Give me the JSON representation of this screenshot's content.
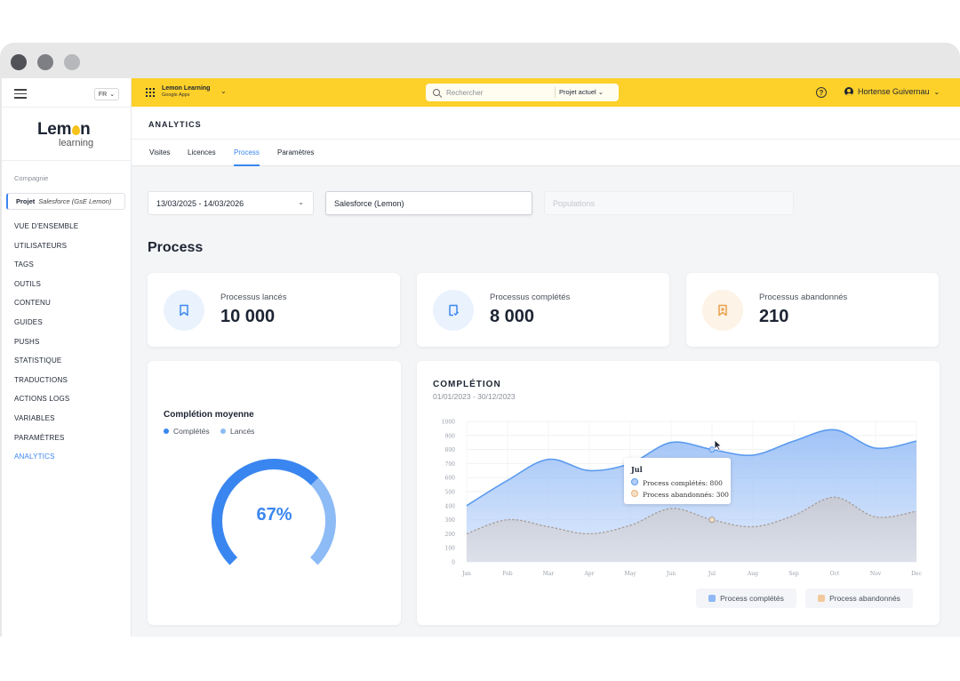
{
  "window": {
    "colors": {
      "dot1": "#505257",
      "dot2": "#7d7f84",
      "dot3": "#b7b8bb"
    }
  },
  "sidebar": {
    "lang": "FR",
    "logo": {
      "word_pre": "Lem",
      "word_post": "n",
      "sub": "learning"
    },
    "company_label": "Compagnie",
    "project": {
      "label": "Projet",
      "value": "Salesforce (GsE Lemon)"
    },
    "items": [
      {
        "label": "VUE D'ENSEMBLE"
      },
      {
        "label": "UTILISATEURS"
      },
      {
        "label": "TAGS"
      },
      {
        "label": "OUTILS"
      },
      {
        "label": "CONTENU"
      },
      {
        "label": "GUIDES"
      },
      {
        "label": "PUSHS"
      },
      {
        "label": "STATISTIQUE"
      },
      {
        "label": "TRADUCTIONS"
      },
      {
        "label": "ACTIONS LOGS"
      },
      {
        "label": "VARIABLES"
      },
      {
        "label": "PARAMÈTRES"
      },
      {
        "label": "ANALYTICS",
        "active": true
      }
    ]
  },
  "topbar": {
    "app_name": "Lemon Learning",
    "app_sub": "Google Apps",
    "search_placeholder": "Rechercher",
    "search_scope": "Projet actuel",
    "help": "?",
    "user": "Hortense Guivernau",
    "accent": "#fdd02a"
  },
  "page": {
    "title": "ANALYTICS",
    "tabs": [
      {
        "label": "Visites"
      },
      {
        "label": "Licences"
      },
      {
        "label": "Process",
        "active": true
      },
      {
        "label": "Paramètres"
      }
    ],
    "filters": {
      "date_range": "13/03/2025 - 14/03/2026",
      "project": "Salesforce (Lemon)",
      "populations_placeholder": "Populations"
    },
    "section_title": "Process"
  },
  "kpis": [
    {
      "label": "Processus lancés",
      "value": "10 000",
      "icon": "bookmark-icon",
      "badge": "#eaf2fd",
      "color": "#3a86f0"
    },
    {
      "label": "Processus complétés",
      "value": "8 000",
      "icon": "book-check-icon",
      "badge": "#eaf2fd",
      "color": "#3a86f0"
    },
    {
      "label": "Processus abandonnés",
      "value": "210",
      "icon": "bookmark-x-icon",
      "badge": "#fdf3e6",
      "color": "#e8a04a"
    }
  ],
  "gauge": {
    "title": "Complétion moyenne",
    "legend": [
      {
        "label": "Complétés",
        "color": "#3a86f0"
      },
      {
        "label": "Lancés",
        "color": "#8dbbf6"
      }
    ],
    "percent_label": "67%",
    "completed_fraction": 0.67
  },
  "chart_data": {
    "type": "area",
    "title": "COMPLÉTION",
    "subtitle": "01/01/2023 - 30/12/2023",
    "categories": [
      "Jan",
      "Feb",
      "Mar",
      "Apr",
      "May",
      "Jun",
      "Jul",
      "Aug",
      "Sep",
      "Oct",
      "Nov",
      "Dec"
    ],
    "series": [
      {
        "name": "Process complétés",
        "values": [
          400,
          580,
          730,
          650,
          700,
          850,
          800,
          760,
          860,
          940,
          810,
          860
        ],
        "color": "#5b9bef"
      },
      {
        "name": "Process abandonnés",
        "values": [
          200,
          300,
          250,
          200,
          260,
          380,
          300,
          250,
          330,
          460,
          320,
          360
        ],
        "color": "#e3b681"
      }
    ],
    "yticks": [
      "0",
      "100",
      "200",
      "300",
      "400",
      "500",
      "600",
      "700",
      "800",
      "900",
      "1000"
    ],
    "ylim": [
      0,
      1000
    ],
    "legend_position": "bottom-right",
    "tooltip": {
      "title": "Jul",
      "items": [
        "Process complétés: 800",
        "Process abandonnés: 300"
      ],
      "category_index": 6
    }
  }
}
